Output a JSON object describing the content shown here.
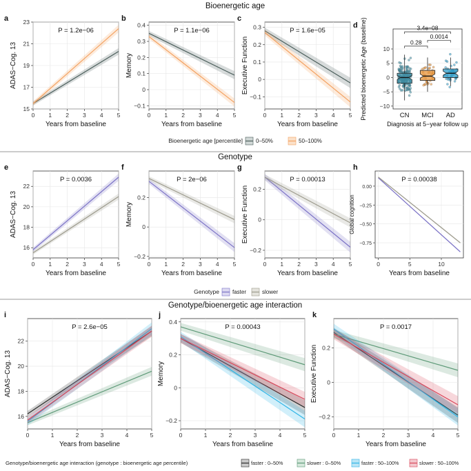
{
  "sections": [
    {
      "title": "Bioenergetic age"
    },
    {
      "title": "Genotype"
    },
    {
      "title": "Genotype/bioenergetic age interaction"
    }
  ],
  "legends": [
    {
      "title": "Bioenergetic age [percentile]",
      "entries": [
        {
          "label": "0–50%",
          "color": "#4a5d5a"
        },
        {
          "label": "50–100%",
          "color": "#f4a261"
        }
      ]
    },
    {
      "title": "Genotype",
      "entries": [
        {
          "label": "faster",
          "color": "#7b72c6"
        },
        {
          "label": "slower",
          "color": "#9c9a8c"
        }
      ]
    },
    {
      "title": "Genotype/bioenergetic age interaction (genotype : bioenergetic age percentile)",
      "entries": [
        {
          "label": "faster : 0–50%",
          "color": "#2b2b2b"
        },
        {
          "label": "slower : 0–50%",
          "color": "#5e9a78"
        },
        {
          "label": "faster : 50–100%",
          "color": "#2fb5e6"
        },
        {
          "label": "slower : 50–100%",
          "color": "#d9475a"
        }
      ]
    }
  ],
  "chart_data": [
    {
      "panel": "a",
      "type": "line",
      "ylabel": "ADAS−Cog. 13",
      "xlabel": "Years from baseline",
      "annotation": "P = 1.2e−06",
      "xlim": [
        0,
        5
      ],
      "ylim": [
        15,
        23
      ],
      "xticks": [
        0,
        1,
        2,
        3,
        4,
        5
      ],
      "yticks": [
        15,
        17,
        19,
        21,
        23
      ],
      "series": [
        {
          "name": "0–50%",
          "x": [
            0,
            5
          ],
          "y": [
            15.5,
            20.3
          ],
          "band": 0.3
        },
        {
          "name": "50–100%",
          "x": [
            0,
            5
          ],
          "y": [
            15.5,
            22.4
          ],
          "band": 0.35
        }
      ]
    },
    {
      "panel": "b",
      "type": "line",
      "ylabel": "Memory",
      "xlabel": "Years from baseline",
      "annotation": "P = 1.1e−06",
      "xlim": [
        0,
        5
      ],
      "ylim": [
        -0.12,
        0.42
      ],
      "xticks": [
        0,
        1,
        2,
        3,
        4,
        5
      ],
      "yticks": [
        -0.1,
        0,
        0.1,
        0.2,
        0.3,
        0.4
      ],
      "series": [
        {
          "name": "0–50%",
          "x": [
            0,
            5
          ],
          "y": [
            0.35,
            0.09
          ],
          "band": 0.025
        },
        {
          "name": "50–100%",
          "x": [
            0,
            5
          ],
          "y": [
            0.33,
            -0.08
          ],
          "band": 0.025
        }
      ]
    },
    {
      "panel": "c",
      "type": "line",
      "ylabel": "Executive Function",
      "xlabel": "Years from baseline",
      "annotation": "P = 1.6e−05",
      "xlim": [
        0,
        5
      ],
      "ylim": [
        -0.17,
        0.33
      ],
      "xticks": [
        0,
        1,
        2,
        3,
        4,
        5
      ],
      "yticks": [
        -0.1,
        0,
        0.1,
        0.2,
        0.3
      ],
      "series": [
        {
          "name": "0–50%",
          "x": [
            0,
            5
          ],
          "y": [
            0.28,
            -0.02
          ],
          "band": 0.03
        },
        {
          "name": "50–100%",
          "x": [
            0,
            5
          ],
          "y": [
            0.27,
            -0.13
          ],
          "band": 0.03
        }
      ]
    },
    {
      "panel": "d",
      "type": "box",
      "ylabel": "Predicted bioenergetic Age (baseline)",
      "xlabel": "Diagnosis at 5−year follow up",
      "ylim": [
        -11,
        17
      ],
      "yticks": [
        -10,
        -5,
        0,
        5,
        10
      ],
      "categories": [
        "CN",
        "MCI",
        "AD"
      ],
      "boxes": [
        {
          "name": "CN",
          "q1": -2,
          "median": 0,
          "q3": 1.5,
          "low": -8,
          "high": 8,
          "color": "#3d8fa6",
          "n": 170
        },
        {
          "name": "MCI",
          "q1": -1,
          "median": 0.5,
          "q3": 2.5,
          "low": -5,
          "high": 7,
          "color": "#e8943a",
          "n": 35
        },
        {
          "name": "AD",
          "q1": 0,
          "median": 1.5,
          "q3": 3,
          "low": -3,
          "high": 7,
          "color": "#2a9bc8",
          "n": 40
        }
      ],
      "comparisons": [
        {
          "label": "3.4e−08",
          "from": "CN",
          "to": "AD",
          "level": 16
        },
        {
          "label": "0.28",
          "from": "CN",
          "to": "MCI",
          "level": 11
        },
        {
          "label": "0.0014",
          "from": "MCI",
          "to": "AD",
          "level": 13
        }
      ]
    },
    {
      "panel": "e",
      "type": "line",
      "ylabel": "ADAS−Cog. 13",
      "xlabel": "Years from baseline",
      "annotation": "P = 0.0036",
      "xlim": [
        0,
        5
      ],
      "ylim": [
        15,
        23.5
      ],
      "xticks": [
        0,
        1,
        2,
        3,
        4,
        5
      ],
      "yticks": [
        16,
        18,
        20,
        22
      ],
      "series": [
        {
          "name": "faster",
          "x": [
            0,
            5
          ],
          "y": [
            15.8,
            22.9
          ],
          "band": 0.35
        },
        {
          "name": "slower",
          "x": [
            0,
            5
          ],
          "y": [
            15.5,
            21.0
          ],
          "band": 0.3
        }
      ]
    },
    {
      "panel": "f",
      "type": "line",
      "ylabel": "Memory",
      "xlabel": "Years from baseline",
      "annotation": "P = 2e−06",
      "xlim": [
        0,
        5
      ],
      "ylim": [
        -0.21,
        0.38
      ],
      "xticks": [
        0,
        1,
        2,
        3,
        4,
        5
      ],
      "yticks": [
        -0.2,
        0,
        0.2
      ],
      "series": [
        {
          "name": "faster",
          "x": [
            0,
            5
          ],
          "y": [
            0.31,
            -0.14
          ],
          "band": 0.03
        },
        {
          "name": "slower",
          "x": [
            0,
            5
          ],
          "y": [
            0.33,
            0.05
          ],
          "band": 0.025
        }
      ]
    },
    {
      "panel": "g",
      "type": "line",
      "ylabel": "Executive Function",
      "xlabel": "Years from baseline",
      "annotation": "P = 0.00013",
      "xlim": [
        0,
        5
      ],
      "ylim": [
        -0.25,
        0.32
      ],
      "xticks": [
        0,
        1,
        2,
        3,
        4,
        5
      ],
      "yticks": [
        -0.2,
        0,
        0.2
      ],
      "series": [
        {
          "name": "faster",
          "x": [
            0,
            5
          ],
          "y": [
            0.28,
            -0.18
          ],
          "band": 0.035
        },
        {
          "name": "slower",
          "x": [
            0,
            5
          ],
          "y": [
            0.28,
            -0.02
          ],
          "band": 0.03
        }
      ]
    },
    {
      "panel": "h",
      "type": "line",
      "ylabel": "Global cognition",
      "xlabel": "Years from baseline",
      "annotation": "P = 0.00038",
      "xlim": [
        -0.5,
        13.5
      ],
      "ylim": [
        -0.95,
        0.2
      ],
      "xticks": [
        0,
        5,
        10
      ],
      "yticks": [
        0.0,
        -0.25,
        -0.5,
        -0.75
      ],
      "ytickfmt": [
        "0.00",
        "−0.25",
        "−0.50",
        "−0.75"
      ],
      "series": [
        {
          "name": "faster",
          "x": [
            0,
            13
          ],
          "y": [
            0.11,
            -0.87
          ],
          "band": 0.01
        },
        {
          "name": "slower",
          "x": [
            0,
            13
          ],
          "y": [
            0.12,
            -0.75
          ],
          "band": 0.01
        }
      ]
    },
    {
      "panel": "i",
      "type": "line",
      "ylabel": "ADAS−Cog. 13",
      "xlabel": "Years from baseline",
      "annotation": "P = 2.6e−05",
      "xlim": [
        0,
        5
      ],
      "ylim": [
        15,
        23.8
      ],
      "xticks": [
        0,
        1,
        2,
        3,
        4,
        5
      ],
      "yticks": [
        16,
        18,
        20,
        22
      ],
      "series": [
        {
          "name": "faster : 0–50%",
          "x": [
            0,
            5
          ],
          "y": [
            16.2,
            22.8
          ],
          "band": 0.4
        },
        {
          "name": "slower : 0–50%",
          "x": [
            0,
            5
          ],
          "y": [
            15.5,
            19.6
          ],
          "band": 0.35
        },
        {
          "name": "faster : 50–100%",
          "x": [
            0,
            5
          ],
          "y": [
            15.6,
            23.0
          ],
          "band": 0.5
        },
        {
          "name": "slower : 50–100%",
          "x": [
            0,
            5
          ],
          "y": [
            15.7,
            22.8
          ],
          "band": 0.45
        }
      ]
    },
    {
      "panel": "j",
      "type": "line",
      "ylabel": "Memory",
      "xlabel": "Years from baseline",
      "annotation": "P = 0.00043",
      "xlim": [
        0,
        5
      ],
      "ylim": [
        -0.25,
        0.42
      ],
      "xticks": [
        0,
        1,
        2,
        3,
        4,
        5
      ],
      "yticks": [
        -0.2,
        0,
        0.2,
        0.4
      ],
      "series": [
        {
          "name": "faster : 0–50%",
          "x": [
            0,
            5
          ],
          "y": [
            0.3,
            -0.12
          ],
          "band": 0.045
        },
        {
          "name": "slower : 0–50%",
          "x": [
            0,
            5
          ],
          "y": [
            0.37,
            0.14
          ],
          "band": 0.04
        },
        {
          "name": "faster : 50–100%",
          "x": [
            0,
            5
          ],
          "y": [
            0.31,
            -0.19
          ],
          "band": 0.05
        },
        {
          "name": "slower : 50–100%",
          "x": [
            0,
            5
          ],
          "y": [
            0.3,
            -0.07
          ],
          "band": 0.045
        }
      ]
    },
    {
      "panel": "k",
      "type": "line",
      "ylabel": "Executive Function",
      "xlabel": "Years from baseline",
      "annotation": "P = 0.0017",
      "xlim": [
        0,
        5
      ],
      "ylim": [
        -0.27,
        0.37
      ],
      "xticks": [
        0,
        1,
        2,
        3,
        4,
        5
      ],
      "yticks": [
        -0.2,
        0,
        0.2
      ],
      "series": [
        {
          "name": "faster : 0–50%",
          "x": [
            0,
            5
          ],
          "y": [
            0.29,
            -0.19
          ],
          "band": 0.045
        },
        {
          "name": "slower : 0–50%",
          "x": [
            0,
            5
          ],
          "y": [
            0.28,
            0.07
          ],
          "band": 0.04
        },
        {
          "name": "faster : 50–100%",
          "x": [
            0,
            5
          ],
          "y": [
            0.31,
            -0.2
          ],
          "band": 0.05
        },
        {
          "name": "slower : 50–100%",
          "x": [
            0,
            5
          ],
          "y": [
            0.28,
            -0.13
          ],
          "band": 0.05
        }
      ]
    }
  ]
}
